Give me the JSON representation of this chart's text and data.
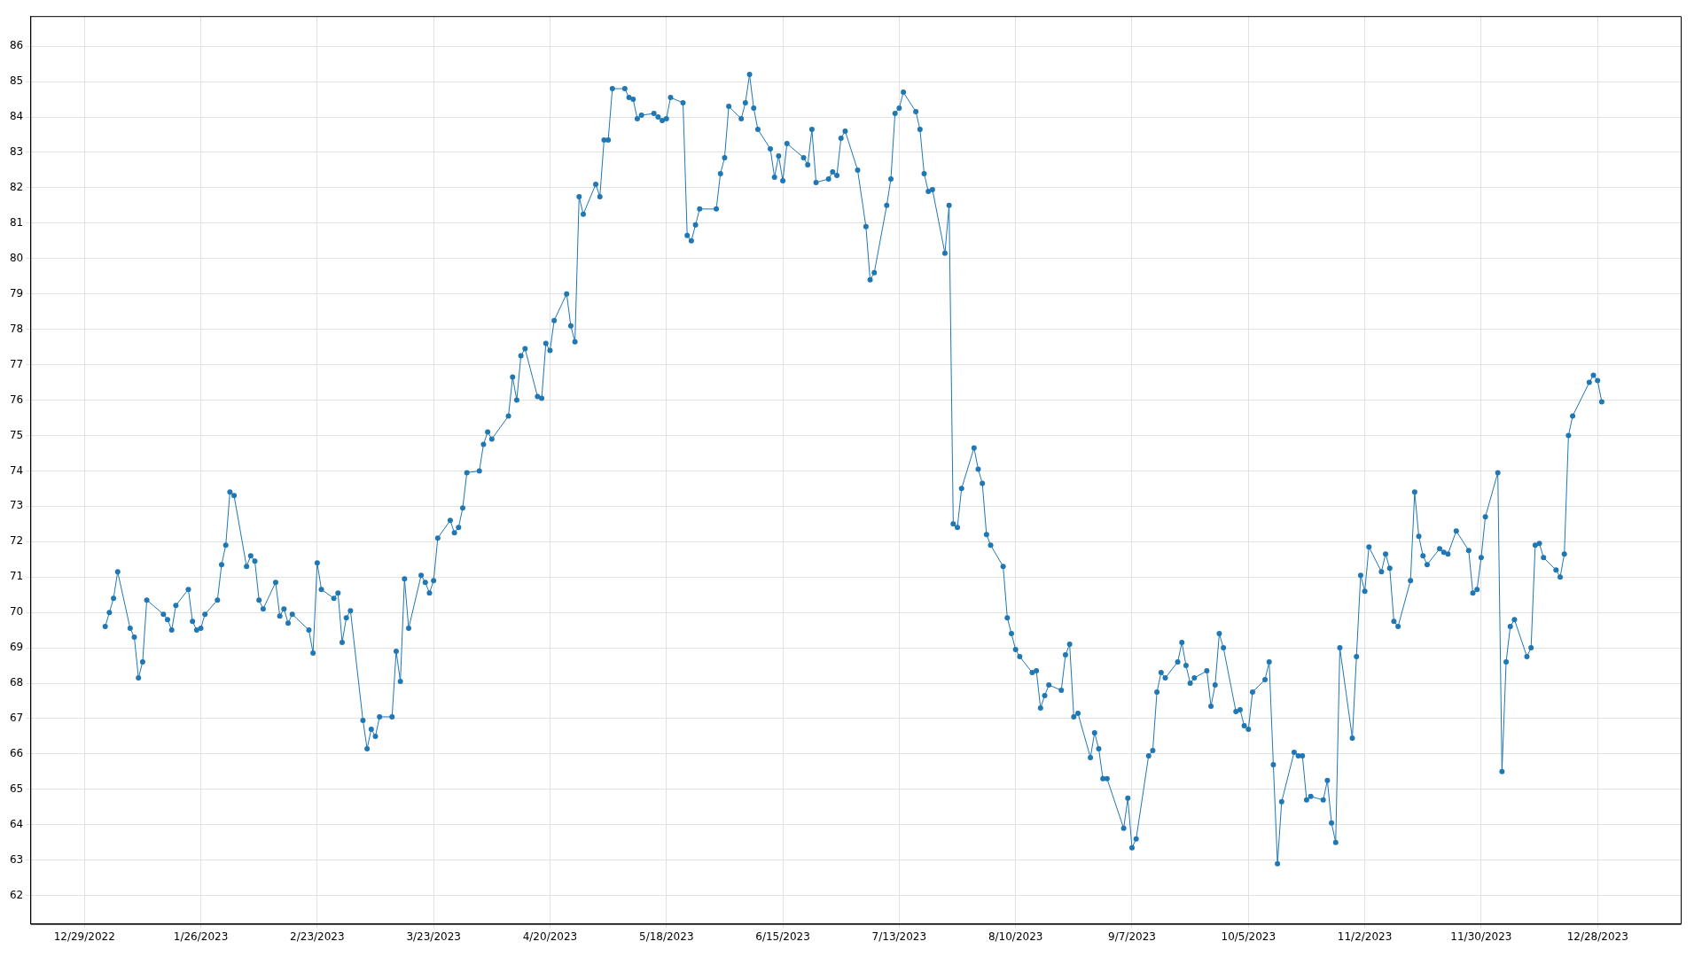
{
  "chart_data": {
    "type": "line",
    "x": [
      "2023-01-03",
      "2023-01-04",
      "2023-01-05",
      "2023-01-06",
      "2023-01-09",
      "2023-01-10",
      "2023-01-11",
      "2023-01-12",
      "2023-01-13",
      "2023-01-17",
      "2023-01-18",
      "2023-01-19",
      "2023-01-20",
      "2023-01-23",
      "2023-01-24",
      "2023-01-25",
      "2023-01-26",
      "2023-01-27",
      "2023-01-30",
      "2023-01-31",
      "2023-02-01",
      "2023-02-02",
      "2023-02-03",
      "2023-02-06",
      "2023-02-07",
      "2023-02-08",
      "2023-02-09",
      "2023-02-10",
      "2023-02-13",
      "2023-02-14",
      "2023-02-15",
      "2023-02-16",
      "2023-02-17",
      "2023-02-21",
      "2023-02-22",
      "2023-02-23",
      "2023-02-24",
      "2023-02-27",
      "2023-02-28",
      "2023-03-01",
      "2023-03-02",
      "2023-03-03",
      "2023-03-06",
      "2023-03-07",
      "2023-03-08",
      "2023-03-09",
      "2023-03-10",
      "2023-03-13",
      "2023-03-14",
      "2023-03-15",
      "2023-03-16",
      "2023-03-17",
      "2023-03-20",
      "2023-03-21",
      "2023-03-22",
      "2023-03-23",
      "2023-03-24",
      "2023-03-27",
      "2023-03-28",
      "2023-03-29",
      "2023-03-30",
      "2023-03-31",
      "2023-04-03",
      "2023-04-04",
      "2023-04-05",
      "2023-04-06",
      "2023-04-10",
      "2023-04-11",
      "2023-04-12",
      "2023-04-13",
      "2023-04-14",
      "2023-04-17",
      "2023-04-18",
      "2023-04-19",
      "2023-04-20",
      "2023-04-21",
      "2023-04-24",
      "2023-04-25",
      "2023-04-26",
      "2023-04-27",
      "2023-04-28",
      "2023-05-01",
      "2023-05-02",
      "2023-05-03",
      "2023-05-04",
      "2023-05-05",
      "2023-05-08",
      "2023-05-09",
      "2023-05-10",
      "2023-05-11",
      "2023-05-12",
      "2023-05-15",
      "2023-05-16",
      "2023-05-17",
      "2023-05-18",
      "2023-05-19",
      "2023-05-22",
      "2023-05-23",
      "2023-05-24",
      "2023-05-25",
      "2023-05-26",
      "2023-05-30",
      "2023-05-31",
      "2023-06-01",
      "2023-06-02",
      "2023-06-05",
      "2023-06-06",
      "2023-06-07",
      "2023-06-08",
      "2023-06-09",
      "2023-06-12",
      "2023-06-13",
      "2023-06-14",
      "2023-06-15",
      "2023-06-16",
      "2023-06-20",
      "2023-06-21",
      "2023-06-22",
      "2023-06-23",
      "2023-06-26",
      "2023-06-27",
      "2023-06-28",
      "2023-06-29",
      "2023-06-30",
      "2023-07-03",
      "2023-07-05",
      "2023-07-06",
      "2023-07-07",
      "2023-07-10",
      "2023-07-11",
      "2023-07-12",
      "2023-07-13",
      "2023-07-14",
      "2023-07-17",
      "2023-07-18",
      "2023-07-19",
      "2023-07-20",
      "2023-07-21",
      "2023-07-24",
      "2023-07-25",
      "2023-07-26",
      "2023-07-27",
      "2023-07-28",
      "2023-07-31",
      "2023-08-01",
      "2023-08-02",
      "2023-08-03",
      "2023-08-04",
      "2023-08-07",
      "2023-08-08",
      "2023-08-09",
      "2023-08-10",
      "2023-08-11",
      "2023-08-14",
      "2023-08-15",
      "2023-08-16",
      "2023-08-17",
      "2023-08-18",
      "2023-08-21",
      "2023-08-22",
      "2023-08-23",
      "2023-08-24",
      "2023-08-25",
      "2023-08-28",
      "2023-08-29",
      "2023-08-30",
      "2023-08-31",
      "2023-09-01",
      "2023-09-05",
      "2023-09-06",
      "2023-09-07",
      "2023-09-08",
      "2023-09-11",
      "2023-09-12",
      "2023-09-13",
      "2023-09-14",
      "2023-09-15",
      "2023-09-18",
      "2023-09-19",
      "2023-09-20",
      "2023-09-21",
      "2023-09-22",
      "2023-09-25",
      "2023-09-26",
      "2023-09-27",
      "2023-09-28",
      "2023-09-29",
      "2023-10-02",
      "2023-10-03",
      "2023-10-04",
      "2023-10-05",
      "2023-10-06",
      "2023-10-09",
      "2023-10-10",
      "2023-10-11",
      "2023-10-12",
      "2023-10-13",
      "2023-10-16",
      "2023-10-17",
      "2023-10-18",
      "2023-10-19",
      "2023-10-20",
      "2023-10-23",
      "2023-10-24",
      "2023-10-25",
      "2023-10-26",
      "2023-10-27",
      "2023-10-30",
      "2023-10-31",
      "2023-11-01",
      "2023-11-02",
      "2023-11-03",
      "2023-11-06",
      "2023-11-07",
      "2023-11-08",
      "2023-11-09",
      "2023-11-10",
      "2023-11-13",
      "2023-11-14",
      "2023-11-15",
      "2023-11-16",
      "2023-11-17",
      "2023-11-20",
      "2023-11-21",
      "2023-11-22",
      "2023-11-24",
      "2023-11-27",
      "2023-11-28",
      "2023-11-29",
      "2023-11-30",
      "2023-12-01",
      "2023-12-04",
      "2023-12-05",
      "2023-12-06",
      "2023-12-07",
      "2023-12-08",
      "2023-12-11",
      "2023-12-12",
      "2023-12-13",
      "2023-12-14",
      "2023-12-15",
      "2023-12-18",
      "2023-12-19",
      "2023-12-20",
      "2023-12-21",
      "2023-12-22",
      "2023-12-26",
      "2023-12-27",
      "2023-12-28",
      "2023-12-29"
    ],
    "series": [
      {
        "color": "#1f77b4",
        "values": [
          69.6,
          70.0,
          70.4,
          71.15,
          69.55,
          69.3,
          68.15,
          68.6,
          70.35,
          69.95,
          69.8,
          69.5,
          70.2,
          70.65,
          69.75,
          69.5,
          69.55,
          69.95,
          70.35,
          71.35,
          71.9,
          73.4,
          73.3,
          71.3,
          71.6,
          71.45,
          70.35,
          70.1,
          70.85,
          69.9,
          70.1,
          69.7,
          69.95,
          69.5,
          68.85,
          71.4,
          70.65,
          70.4,
          70.55,
          69.15,
          69.85,
          70.05,
          66.95,
          66.15,
          66.7,
          66.5,
          67.05,
          67.05,
          68.9,
          68.05,
          70.95,
          69.55,
          71.05,
          70.85,
          70.55,
          70.9,
          72.1,
          72.6,
          72.25,
          72.4,
          72.95,
          73.95,
          74.0,
          74.75,
          75.1,
          74.9,
          75.55,
          76.65,
          76.0,
          77.25,
          77.45,
          76.1,
          76.05,
          77.6,
          77.4,
          78.25,
          79.0,
          78.1,
          77.65,
          81.75,
          81.25,
          82.1,
          81.75,
          83.35,
          83.35,
          84.8,
          84.8,
          84.55,
          84.5,
          83.95,
          84.05,
          84.1,
          84.0,
          83.9,
          83.95,
          84.55,
          84.4,
          80.65,
          80.5,
          80.95,
          81.4,
          81.4,
          82.4,
          82.85,
          84.3,
          83.95,
          84.4,
          85.2,
          84.25,
          83.65,
          83.1,
          82.3,
          82.9,
          82.2,
          83.25,
          82.85,
          82.65,
          83.65,
          82.15,
          82.25,
          82.45,
          82.35,
          83.4,
          83.6,
          82.5,
          80.9,
          79.4,
          79.6,
          81.5,
          82.25,
          84.1,
          84.25,
          84.7,
          84.15,
          83.65,
          82.4,
          81.9,
          81.95,
          80.15,
          81.5,
          72.5,
          72.4,
          73.5,
          74.65,
          74.05,
          73.65,
          72.2,
          71.9,
          71.3,
          69.85,
          69.4,
          68.95,
          68.75,
          68.3,
          68.35,
          67.3,
          67.65,
          67.95,
          67.8,
          68.8,
          69.1,
          67.05,
          67.15,
          65.9,
          66.6,
          66.15,
          65.3,
          65.3,
          63.9,
          64.75,
          63.35,
          63.6,
          65.95,
          66.1,
          67.75,
          68.3,
          68.15,
          68.6,
          69.15,
          68.5,
          68.0,
          68.15,
          68.35,
          67.35,
          67.95,
          69.4,
          69.0,
          67.2,
          67.25,
          66.8,
          66.7,
          67.75,
          68.1,
          68.6,
          65.7,
          62.9,
          64.65,
          66.05,
          65.95,
          65.95,
          64.7,
          64.8,
          64.7,
          65.25,
          64.05,
          63.5,
          69.0,
          66.45,
          68.75,
          71.05,
          70.6,
          71.85,
          71.15,
          71.65,
          71.25,
          69.75,
          69.6,
          70.9,
          73.4,
          72.15,
          71.6,
          71.35,
          71.8,
          71.7,
          71.65,
          72.3,
          71.75,
          70.55,
          70.65,
          71.55,
          72.7,
          73.95,
          65.5,
          68.6,
          69.6,
          69.8,
          68.75,
          69.0,
          71.9,
          71.95,
          71.55,
          71.2,
          71.0,
          71.65,
          75.0,
          75.55,
          76.5,
          76.7,
          76.55,
          75.95
        ]
      }
    ],
    "xlim": [
      "2022-12-16",
      "2024-01-17"
    ],
    "xticks": [
      {
        "value": "2022-12-29",
        "label": "12/29/2022"
      },
      {
        "value": "2023-01-26",
        "label": "1/26/2023"
      },
      {
        "value": "2023-02-23",
        "label": "2/23/2023"
      },
      {
        "value": "2023-03-23",
        "label": "3/23/2023"
      },
      {
        "value": "2023-04-20",
        "label": "4/20/2023"
      },
      {
        "value": "2023-05-18",
        "label": "5/18/2023"
      },
      {
        "value": "2023-06-15",
        "label": "6/15/2023"
      },
      {
        "value": "2023-07-13",
        "label": "7/13/2023"
      },
      {
        "value": "2023-08-10",
        "label": "8/10/2023"
      },
      {
        "value": "2023-09-07",
        "label": "9/7/2023"
      },
      {
        "value": "2023-10-05",
        "label": "10/5/2023"
      },
      {
        "value": "2023-11-02",
        "label": "11/2/2023"
      },
      {
        "value": "2023-11-30",
        "label": "11/30/2023"
      },
      {
        "value": "2023-12-28",
        "label": "12/28/2023"
      }
    ],
    "ylim": [
      61.2,
      86.85
    ],
    "yticks": [
      62,
      63,
      64,
      65,
      66,
      67,
      68,
      69,
      70,
      71,
      72,
      73,
      74,
      75,
      76,
      77,
      78,
      79,
      80,
      81,
      82,
      83,
      84,
      85,
      86
    ],
    "grid": true,
    "legend": false,
    "marker": "circle",
    "line_style": "solid"
  }
}
